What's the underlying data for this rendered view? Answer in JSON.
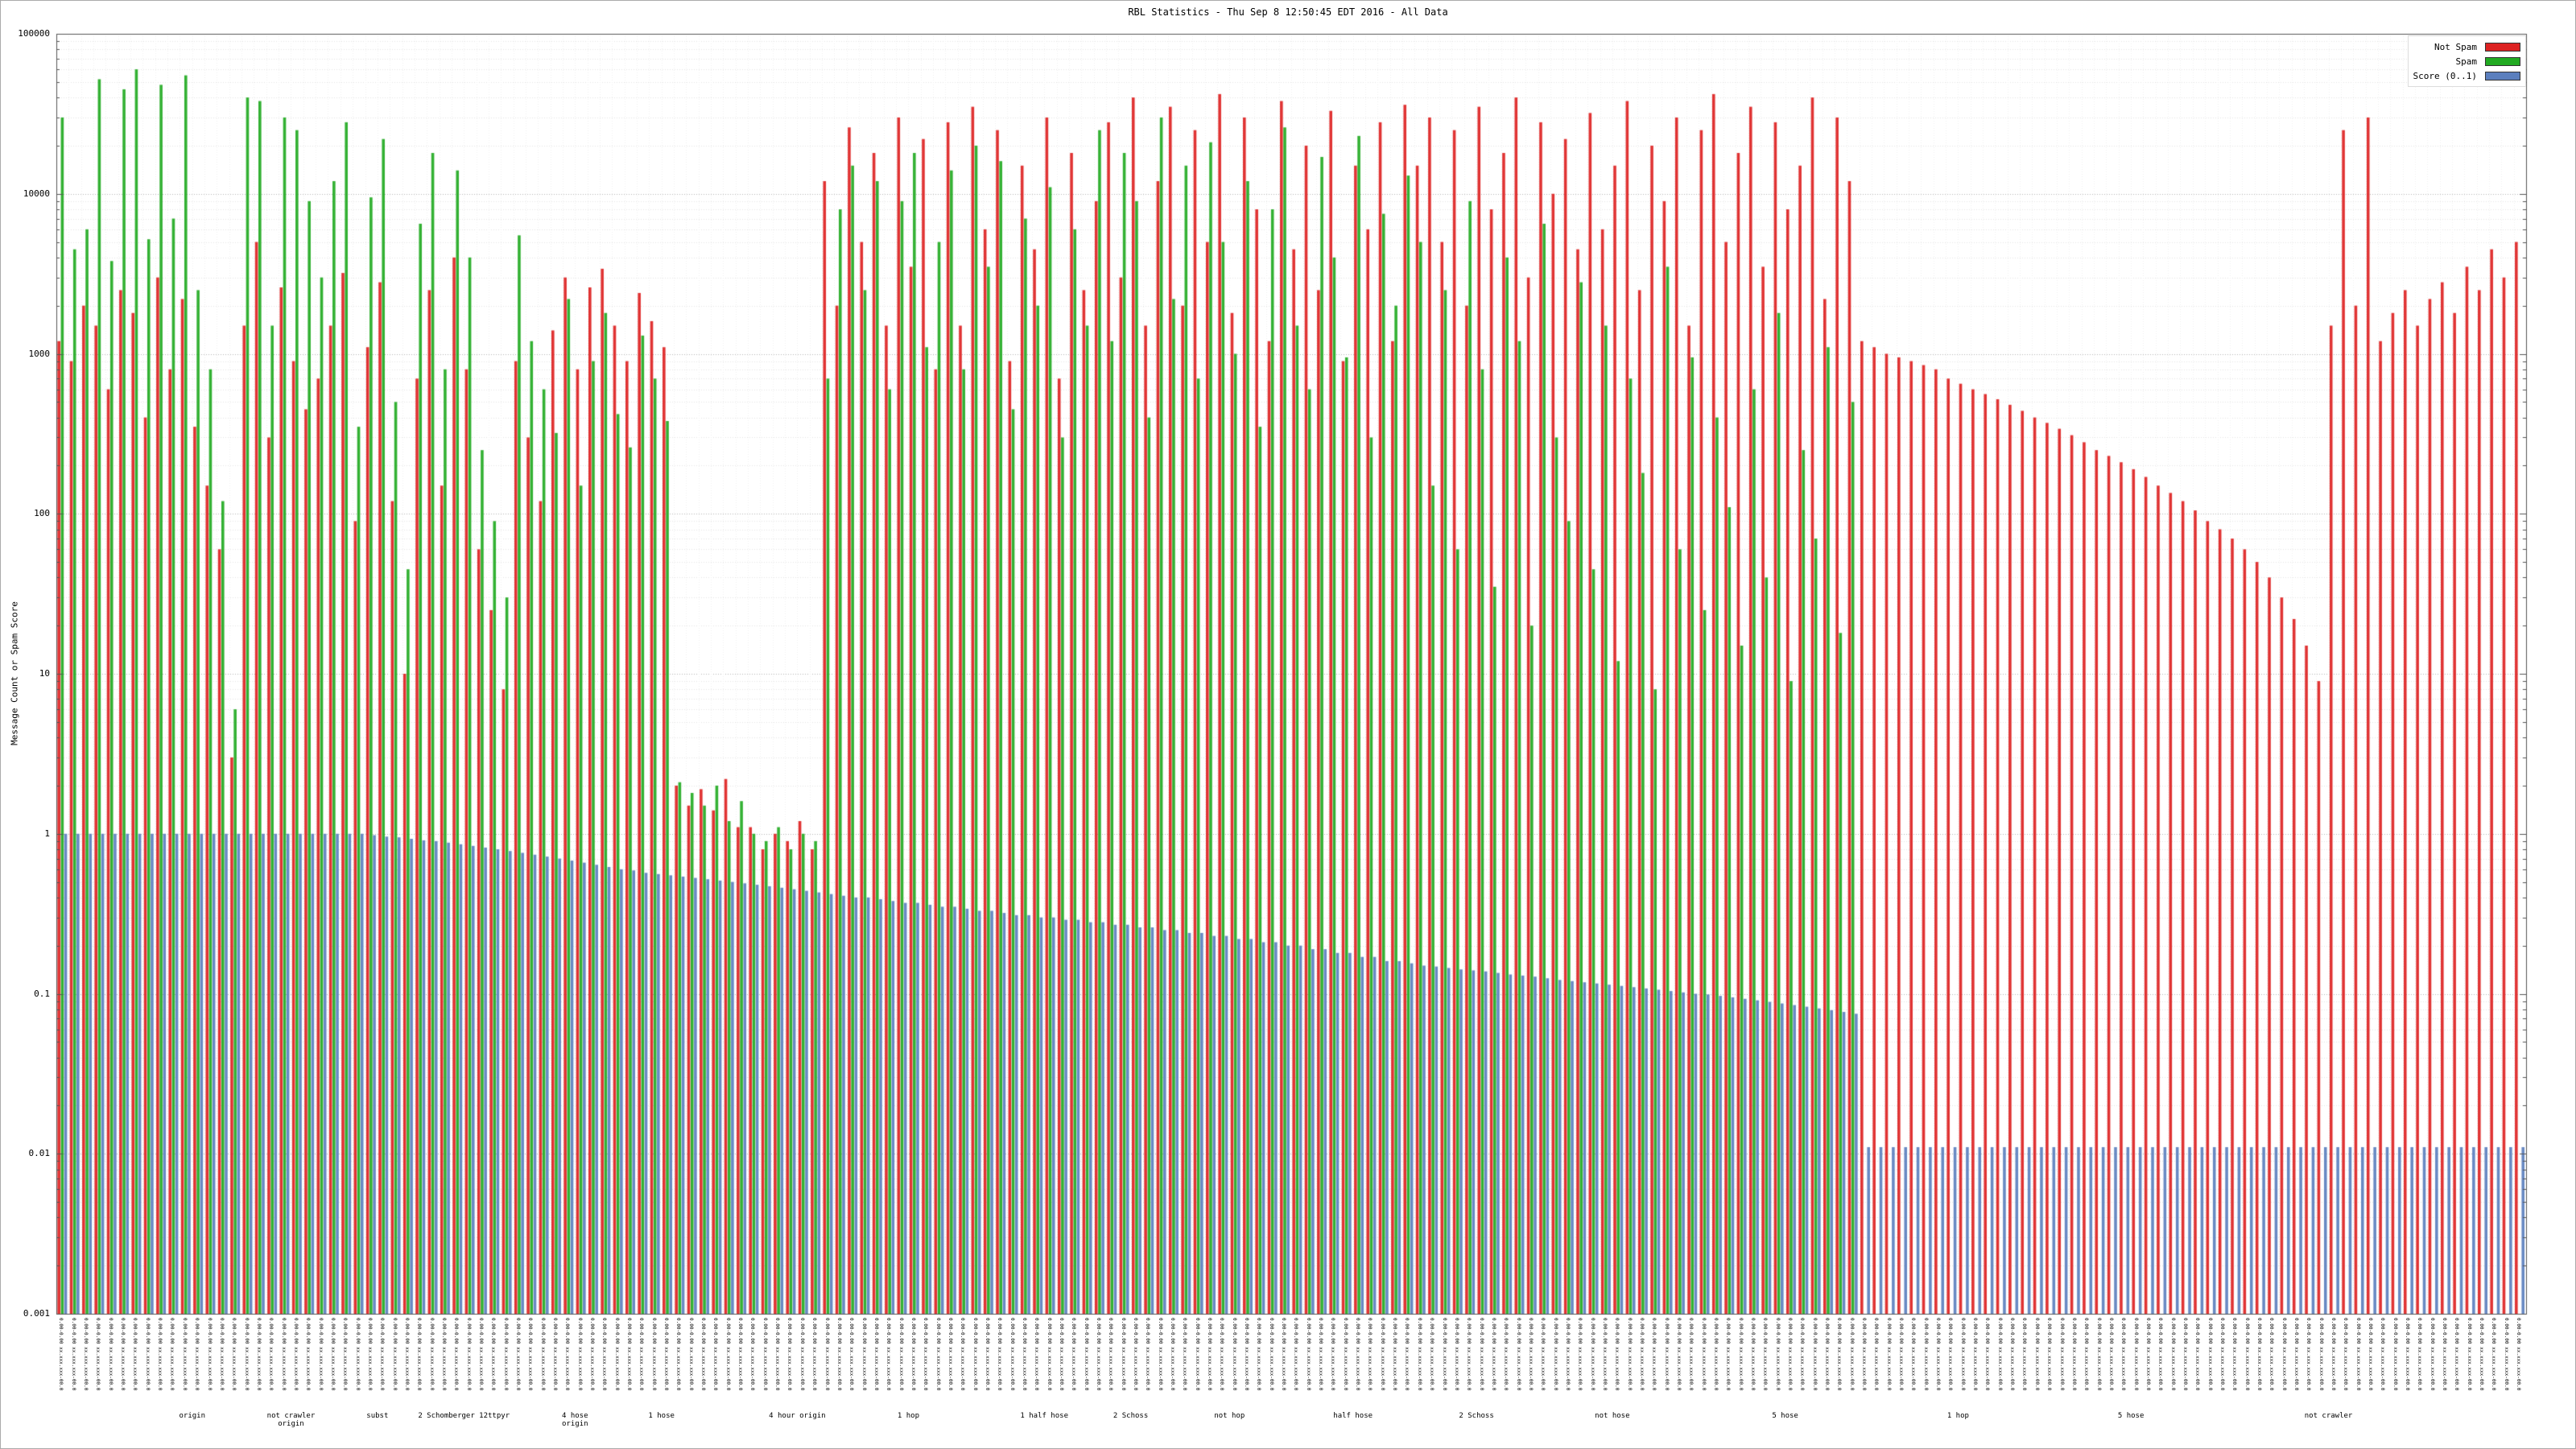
{
  "chart": {
    "title": "RBL Statistics - Thu Sep  8 12:50:45 EDT 2016 - All Data",
    "ylabel": "Message Count or Spam Score"
  },
  "chart_data": {
    "type": "bar",
    "title": "RBL Statistics - Thu Sep  8 12:50:45 EDT 2016 - All Data",
    "xlabel": "",
    "ylabel": "Message Count or Spam Score",
    "yscale": "log",
    "ylim": [
      0.001,
      100000
    ],
    "y_ticks": [
      100000,
      10000,
      1000,
      100,
      10,
      1,
      0.1,
      0.01,
      0.001
    ],
    "grid": true,
    "legend_position": "top-right",
    "x_tick_label_placeholder": "0.00-0.00 xx.xxx.xxx-00.0",
    "group_labels": [
      {
        "pos": 0.055,
        "label": "origin"
      },
      {
        "pos": 0.095,
        "label": "not crawler\norigin"
      },
      {
        "pos": 0.13,
        "label": "subst"
      },
      {
        "pos": 0.165,
        "label": "2 Schomberger 12ttpyr"
      },
      {
        "pos": 0.21,
        "label": "4 hose\norigin"
      },
      {
        "pos": 0.245,
        "label": "1 hose"
      },
      {
        "pos": 0.3,
        "label": "4 hour origin"
      },
      {
        "pos": 0.345,
        "label": "1 hop"
      },
      {
        "pos": 0.4,
        "label": "1 half hose"
      },
      {
        "pos": 0.435,
        "label": "2 Schoss"
      },
      {
        "pos": 0.475,
        "label": "not hop"
      },
      {
        "pos": 0.525,
        "label": "half hose"
      },
      {
        "pos": 0.575,
        "label": "2 Schoss"
      },
      {
        "pos": 0.63,
        "label": "not hose"
      },
      {
        "pos": 0.7,
        "label": "5 hose"
      },
      {
        "pos": 0.77,
        "label": "1 hop"
      },
      {
        "pos": 0.84,
        "label": "5 hose"
      },
      {
        "pos": 0.92,
        "label": "not crawler"
      }
    ],
    "series": [
      {
        "name": "Not Spam",
        "color": "#dd2222",
        "values": [
          1200,
          900,
          2000,
          1500,
          600,
          2500,
          1800,
          400,
          3000,
          800,
          2200,
          350,
          150,
          60,
          3,
          1500,
          5000,
          300,
          2600,
          900,
          450,
          700,
          1500,
          3200,
          90,
          1100,
          2800,
          120,
          10,
          700,
          2500,
          150,
          4000,
          800,
          60,
          25,
          8,
          900,
          300,
          120,
          1400,
          3000,
          800,
          2600,
          3400,
          1500,
          900,
          2400,
          1600,
          1100,
          2.0,
          1.5,
          1.9,
          1.4,
          2.2,
          1.1,
          1.1,
          0.8,
          1.0,
          0.9,
          1.2,
          0.8,
          12000,
          2000,
          26000,
          5000,
          18000,
          1500,
          30000,
          3500,
          22000,
          800,
          28000,
          1500,
          35000,
          6000,
          25000,
          900,
          15000,
          4500,
          30000,
          700,
          18000,
          2500,
          9000,
          28000,
          3000,
          40000,
          1500,
          12000,
          35000,
          2000,
          25000,
          5000,
          42000,
          1800,
          30000,
          8000,
          1200,
          38000,
          4500,
          20000,
          2500,
          33000,
          900,
          15000,
          6000,
          28000,
          1200,
          36000,
          15000,
          30000,
          5000,
          25000,
          2000,
          35000,
          8000,
          18000,
          40000,
          3000,
          28000,
          10000,
          22000,
          4500,
          32000,
          6000,
          15000,
          38000,
          2500,
          20000,
          9000,
          30000,
          1500,
          25000,
          42000,
          5000,
          18000,
          35000,
          3500,
          28000,
          8000,
          15000,
          40000,
          2200,
          30000,
          12000,
          1200,
          1100,
          1000,
          950,
          900,
          850,
          800,
          700,
          650,
          600,
          560,
          520,
          480,
          440,
          400,
          370,
          340,
          310,
          280,
          250,
          230,
          210,
          190,
          170,
          150,
          135,
          120,
          105,
          90,
          80,
          70,
          60,
          50,
          40,
          30,
          22,
          15,
          9,
          1500,
          25000,
          2000,
          30000,
          1200,
          1800,
          2500,
          1500,
          2200,
          2800,
          1800,
          3500,
          2500,
          4500,
          3000,
          5000
        ]
      },
      {
        "name": "Spam",
        "color": "#22aa22",
        "values": [
          30000,
          4500,
          6000,
          52000,
          3800,
          45000,
          60000,
          5200,
          48000,
          7000,
          55000,
          2500,
          800,
          120,
          6,
          40000,
          38000,
          1500,
          30000,
          25000,
          9000,
          3000,
          12000,
          28000,
          350,
          9500,
          22000,
          500,
          45,
          6500,
          18000,
          800,
          14000,
          4000,
          250,
          90,
          30,
          5500,
          1200,
          600,
          320,
          2200,
          150,
          900,
          1800,
          420,
          260,
          1300,
          700,
          380,
          2.1,
          1.8,
          1.5,
          2.0,
          1.2,
          1.6,
          1.0,
          0.9,
          1.1,
          0.8,
          1.0,
          0.9,
          700,
          8000,
          15000,
          2500,
          12000,
          600,
          9000,
          18000,
          1100,
          5000,
          14000,
          800,
          20000,
          3500,
          16000,
          450,
          7000,
          2000,
          11000,
          300,
          6000,
          1500,
          25000,
          1200,
          18000,
          9000,
          400,
          30000,
          2200,
          15000,
          700,
          21000,
          5000,
          1000,
          12000,
          350,
          8000,
          26000,
          1500,
          600,
          17000,
          4000,
          950,
          23000,
          300,
          7500,
          2000,
          13000,
          5000,
          150,
          2500,
          60,
          9000,
          800,
          35,
          4000,
          1200,
          20,
          6500,
          300,
          90,
          2800,
          45,
          1500,
          12,
          700,
          180,
          8,
          3500,
          60,
          950,
          25,
          400,
          110,
          15,
          600,
          40,
          1800,
          9,
          250,
          70,
          1100,
          18,
          500,
          0,
          0,
          0,
          0,
          0,
          0,
          0,
          0,
          0,
          0,
          0,
          0,
          0,
          0,
          0,
          0,
          0,
          0,
          0,
          0,
          0,
          0,
          0,
          0,
          0,
          0,
          0,
          0,
          0,
          0,
          0,
          0,
          0,
          0,
          0,
          0,
          0,
          0,
          0,
          0,
          0,
          0,
          0,
          0,
          0,
          0,
          0,
          0,
          0,
          0,
          0,
          0,
          0,
          0
        ]
      },
      {
        "name": "Score (0..1)",
        "color": "#5b7fbe",
        "values": [
          1,
          1,
          1,
          1,
          1,
          1,
          1,
          1,
          1,
          1,
          1,
          1,
          1,
          1,
          1,
          1,
          1,
          1,
          1,
          1,
          1,
          1,
          1,
          1,
          1,
          0.98,
          0.96,
          0.95,
          0.93,
          0.91,
          0.9,
          0.88,
          0.86,
          0.84,
          0.82,
          0.8,
          0.78,
          0.76,
          0.74,
          0.72,
          0.7,
          0.68,
          0.66,
          0.64,
          0.62,
          0.6,
          0.59,
          0.57,
          0.56,
          0.55,
          0.54,
          0.53,
          0.52,
          0.51,
          0.5,
          0.49,
          0.48,
          0.47,
          0.46,
          0.45,
          0.44,
          0.43,
          0.42,
          0.41,
          0.4,
          0.4,
          0.39,
          0.38,
          0.37,
          0.37,
          0.36,
          0.35,
          0.35,
          0.34,
          0.33,
          0.33,
          0.32,
          0.31,
          0.31,
          0.3,
          0.3,
          0.29,
          0.29,
          0.28,
          0.28,
          0.27,
          0.27,
          0.26,
          0.26,
          0.25,
          0.25,
          0.24,
          0.24,
          0.23,
          0.23,
          0.22,
          0.22,
          0.21,
          0.21,
          0.2,
          0.2,
          0.19,
          0.19,
          0.18,
          0.18,
          0.17,
          0.17,
          0.16,
          0.16,
          0.155,
          0.15,
          0.148,
          0.145,
          0.142,
          0.14,
          0.138,
          0.135,
          0.132,
          0.13,
          0.128,
          0.125,
          0.122,
          0.12,
          0.118,
          0.116,
          0.114,
          0.112,
          0.11,
          0.108,
          0.106,
          0.104,
          0.102,
          0.1,
          0.099,
          0.097,
          0.095,
          0.093,
          0.091,
          0.089,
          0.087,
          0.085,
          0.083,
          0.081,
          0.079,
          0.077,
          0.075,
          0.011,
          0.011,
          0.011,
          0.011,
          0.011,
          0.011,
          0.011,
          0.011,
          0.011,
          0.011,
          0.011,
          0.011,
          0.011,
          0.011,
          0.011,
          0.011,
          0.011,
          0.011,
          0.011,
          0.011,
          0.011,
          0.011,
          0.011,
          0.011,
          0.011,
          0.011,
          0.011,
          0.011,
          0.011,
          0.011,
          0.011,
          0.011,
          0.011,
          0.011,
          0.011,
          0.011,
          0.011,
          0.011,
          0.011,
          0.011,
          0.011,
          0.011,
          0.011,
          0.011,
          0.011,
          0.011,
          0.011,
          0.011,
          0.011,
          0.011,
          0.011,
          0.011,
          0.011,
          0.011
        ]
      }
    ]
  }
}
